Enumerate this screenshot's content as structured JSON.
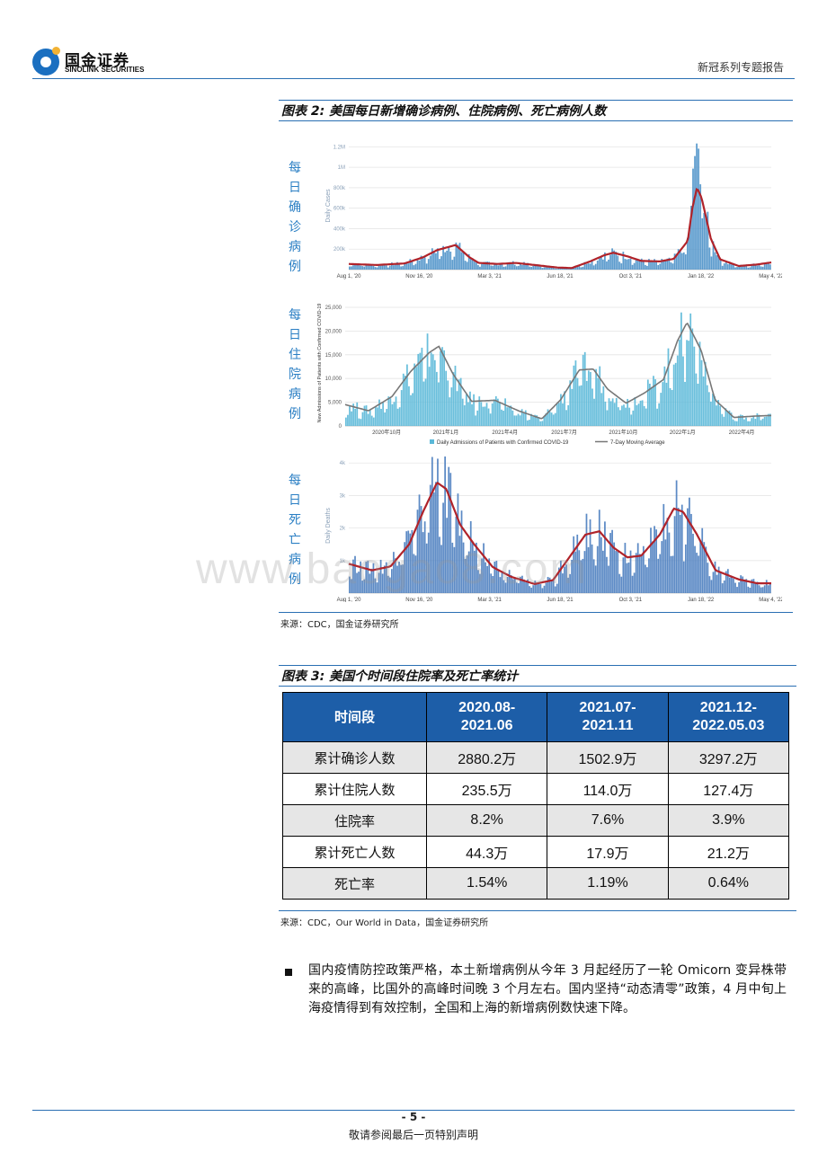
{
  "header": {
    "logo_cn": "国金证券",
    "logo_en": "SINOLINK SECURITIES",
    "report_series": "新冠系列专题报告"
  },
  "figure2": {
    "caption": "图表 2: 美国每日新增确诊病例、住院病例、死亡病例人数",
    "source": "来源：CDC，国金证券研究所",
    "panels": {
      "cases": {
        "side_label": "每日确诊病例"
      },
      "hosp": {
        "side_label": "每日住院病例"
      },
      "deaths": {
        "side_label": "每日死亡病例"
      }
    }
  },
  "chart_data": [
    {
      "type": "bar",
      "ylabel": "Daily Cases",
      "y_ticks": [
        "200k",
        "400k",
        "600k",
        "800k",
        "1M",
        "1.2M"
      ],
      "ylim": [
        0,
        1300000
      ],
      "x_ticks": [
        "Aug 1, '20",
        "Nov 16, '20",
        "Mar 3, '21",
        "Jun 18, '21",
        "Oct 3, '21",
        "Jan 18, '22",
        "May 4, '22"
      ],
      "series": [
        {
          "color": "#4a90c8",
          "moving_average_color": "#b0232a"
        }
      ],
      "moving_average": [
        [
          0,
          55000
        ],
        [
          6,
          45000
        ],
        [
          12,
          60000
        ],
        [
          16,
          120000
        ],
        [
          19,
          190000
        ],
        [
          21,
          215000
        ],
        [
          23,
          240000
        ],
        [
          24,
          200000
        ],
        [
          26,
          120000
        ],
        [
          28,
          65000
        ],
        [
          32,
          55000
        ],
        [
          36,
          65000
        ],
        [
          40,
          45000
        ],
        [
          45,
          20000
        ],
        [
          48,
          15000
        ],
        [
          52,
          80000
        ],
        [
          55,
          140000
        ],
        [
          57,
          165000
        ],
        [
          60,
          130000
        ],
        [
          63,
          85000
        ],
        [
          67,
          80000
        ],
        [
          70,
          105000
        ],
        [
          73,
          280000
        ],
        [
          74,
          600000
        ],
        [
          75,
          800000
        ],
        [
          76,
          700000
        ],
        [
          78,
          300000
        ],
        [
          80,
          100000
        ],
        [
          84,
          35000
        ],
        [
          88,
          50000
        ],
        [
          91,
          70000
        ]
      ],
      "grid": true,
      "legend": "none"
    },
    {
      "type": "bar",
      "ylabel": "New Admissions of Patients with Confirmed COVID-19",
      "y_ticks": [
        "0",
        "5,000",
        "10,000",
        "15,000",
        "20,000",
        "25,000"
      ],
      "ylim": [
        0,
        25000
      ],
      "x_ticks": [
        "2020年10月",
        "2021年1月",
        "2021年4月",
        "2021年7月",
        "2021年10月",
        "2022年1月",
        "2022年4月"
      ],
      "series": [
        {
          "name": "Daily Admissions of Patients with Confirmed COVID-19",
          "color": "#5ab8d8"
        },
        {
          "name": "7-Day Moving Average",
          "color": "#777777"
        }
      ],
      "moving_average": [
        [
          0,
          4500
        ],
        [
          5,
          3200
        ],
        [
          10,
          6200
        ],
        [
          14,
          11500
        ],
        [
          18,
          15500
        ],
        [
          20,
          16800
        ],
        [
          23,
          11000
        ],
        [
          27,
          5200
        ],
        [
          32,
          5400
        ],
        [
          37,
          3200
        ],
        [
          42,
          1500
        ],
        [
          46,
          5500
        ],
        [
          50,
          11800
        ],
        [
          53,
          12000
        ],
        [
          56,
          7800
        ],
        [
          60,
          4800
        ],
        [
          64,
          7000
        ],
        [
          68,
          9800
        ],
        [
          71,
          18000
        ],
        [
          73,
          21800
        ],
        [
          76,
          16000
        ],
        [
          79,
          5500
        ],
        [
          83,
          1800
        ],
        [
          88,
          2100
        ],
        [
          91,
          2200
        ]
      ],
      "grid": true,
      "legend": "bottom"
    },
    {
      "type": "bar",
      "ylabel": "Daily Deaths",
      "y_ticks": [
        "1k",
        "2k",
        "3k",
        "4k"
      ],
      "ylim": [
        0,
        4200
      ],
      "x_ticks": [
        "Aug 1, '20",
        "Nov 16, '20",
        "Mar 3, '21",
        "Jun 18, '21",
        "Oct 3, '21",
        "Jan 18, '22",
        "May 4, '22"
      ],
      "series": [
        {
          "color": "#4a7dbf",
          "moving_average_color": "#b0232a"
        }
      ],
      "moving_average": [
        [
          0,
          900
        ],
        [
          5,
          700
        ],
        [
          9,
          820
        ],
        [
          13,
          1500
        ],
        [
          16,
          2500
        ],
        [
          19,
          3400
        ],
        [
          21,
          3200
        ],
        [
          24,
          2100
        ],
        [
          27,
          1500
        ],
        [
          31,
          800
        ],
        [
          35,
          500
        ],
        [
          40,
          280
        ],
        [
          44,
          400
        ],
        [
          48,
          1200
        ],
        [
          51,
          1800
        ],
        [
          54,
          1900
        ],
        [
          57,
          1400
        ],
        [
          60,
          1100
        ],
        [
          63,
          1150
        ],
        [
          67,
          1800
        ],
        [
          70,
          2600
        ],
        [
          72,
          2500
        ],
        [
          75,
          1800
        ],
        [
          79,
          700
        ],
        [
          84,
          420
        ],
        [
          88,
          300
        ],
        [
          91,
          300
        ]
      ],
      "grid": true,
      "legend": "none"
    }
  ],
  "figure3": {
    "caption": "图表 3: 美国个时间段住院率及死亡率统计",
    "source": "来源：CDC，Our World in Data，国金证券研究所",
    "table": {
      "headers": [
        {
          "l1": "时间段",
          "l2": ""
        },
        {
          "l1": "2020.08-",
          "l2": "2021.06"
        },
        {
          "l1": "2021.07-",
          "l2": "2021.11"
        },
        {
          "l1": "2021.12-",
          "l2": "2022.05.03"
        }
      ],
      "rows": [
        {
          "label": "累计确诊人数",
          "values": [
            "2880.2万",
            "1502.9万",
            "3297.2万"
          ]
        },
        {
          "label": "累计住院人数",
          "values": [
            "235.5万",
            "114.0万",
            "127.4万"
          ]
        },
        {
          "label": "住院率",
          "values": [
            "8.2%",
            "7.6%",
            "3.9%"
          ]
        },
        {
          "label": "累计死亡人数",
          "values": [
            "44.3万",
            "17.9万",
            "21.2万"
          ]
        },
        {
          "label": "死亡率",
          "values": [
            "1.54%",
            "1.19%",
            "0.64%"
          ]
        }
      ]
    }
  },
  "body_text": "国内疫情防控政策严格，本土新增病例从今年 3 月起经历了一轮 Omicorn 变异株带来的高峰，比国外的高峰时间晚 3 个月左右。国内坚持“动态清零”政策，4 月中旬上海疫情得到有效控制，全国和上海的新增病例数快速下降。",
  "watermark": "www.baogao8.com",
  "footer": {
    "page": "- 5 -",
    "disclaimer": "敬请参阅最后一页特别声明"
  }
}
